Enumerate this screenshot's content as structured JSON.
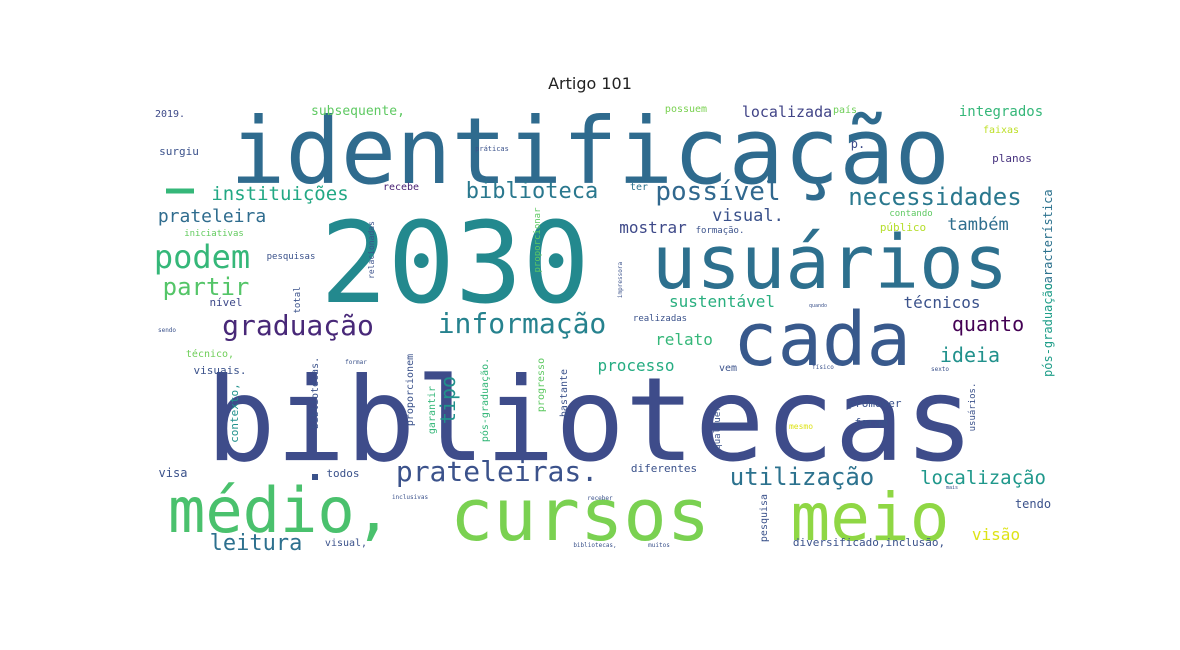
{
  "title": "Artigo 101",
  "words": [
    {
      "text": "bibliotecas",
      "color": "#3e4c8a"
    },
    {
      "text": "2030",
      "color": "#23898e"
    },
    {
      "text": "identificação",
      "color": "#2f6b8e"
    },
    {
      "text": "usuários",
      "color": "#2d708e"
    },
    {
      "text": "cada",
      "color": "#38598c"
    },
    {
      "text": "cursos",
      "color": "#7ad151"
    },
    {
      "text": "meio",
      "color": "#8fd744"
    },
    {
      "text": "médio,",
      "color": "#4ac16d"
    },
    {
      "text": "graduação",
      "color": "#482878"
    },
    {
      "text": "informação",
      "color": "#26828e"
    },
    {
      "text": "podem",
      "color": "#35b779"
    },
    {
      "text": "prateleiras.",
      "color": "#3b528b"
    },
    {
      "text": "utilização",
      "color": "#2c728e"
    },
    {
      "text": "possível",
      "color": "#31688e"
    },
    {
      "text": "necessidades",
      "color": "#2a788e"
    },
    {
      "text": "biblioteca",
      "color": "#2a788e"
    },
    {
      "text": "instituições",
      "color": "#22a884"
    },
    {
      "text": "partir",
      "color": "#54c568"
    },
    {
      "text": "prateleira",
      "color": "#2f6c8e"
    },
    {
      "text": "leitura",
      "color": "#2d708e"
    },
    {
      "text": "localização",
      "color": "#1f988b"
    },
    {
      "text": "quanto",
      "color": "#440154"
    },
    {
      "text": "ideia",
      "color": "#21918c"
    },
    {
      "text": "visual.",
      "color": "#3b528b"
    },
    {
      "text": "também",
      "color": "#2e6e8e"
    },
    {
      "text": "sustentável",
      "color": "#29af7f"
    },
    {
      "text": "mostrar",
      "color": "#3e4989"
    },
    {
      "text": "relato",
      "color": "#35b779"
    },
    {
      "text": "processo",
      "color": "#25ac82"
    },
    {
      "text": "técnicos",
      "color": "#3b528b"
    },
    {
      "text": "tipo",
      "color": "#21918c"
    },
    {
      "text": "visão",
      "color": "#dde318"
    },
    {
      "text": "localizada",
      "color": "#414487"
    },
    {
      "text": "integrados",
      "color": "#35b779"
    },
    {
      "text": "subsequente,",
      "color": "#5ec962"
    },
    {
      "text": "surgiu",
      "color": "#3b528b"
    },
    {
      "text": "2019.",
      "color": "#3e4a89"
    },
    {
      "text": "possuem",
      "color": "#7ad151"
    },
    {
      "text": "país",
      "color": "#6ece58"
    },
    {
      "text": "faixas",
      "color": "#bddf26"
    },
    {
      "text": "p.",
      "color": "#3e4c8a"
    },
    {
      "text": "planos",
      "color": "#46327e"
    },
    {
      "text": "característica",
      "color": "#2c728e"
    },
    {
      "text": "pós-graduação",
      "color": "#1f9e89"
    },
    {
      "text": "recebe",
      "color": "#482173"
    },
    {
      "text": "ter",
      "color": "#2c728e"
    },
    {
      "text": "contando",
      "color": "#5ec962"
    },
    {
      "text": "público",
      "color": "#b5de2b"
    },
    {
      "text": "formação.",
      "color": "#3b528b"
    },
    {
      "text": "iniciativas",
      "color": "#63cb5f"
    },
    {
      "text": "pesquisas",
      "color": "#3b528b"
    },
    {
      "text": "nível",
      "color": "#3e4989"
    },
    {
      "text": "total",
      "color": "#3b528b"
    },
    {
      "text": "realizadas",
      "color": "#3b528b"
    },
    {
      "text": "promover",
      "color": "#3b528b"
    },
    {
      "text": "foram",
      "color": "#3b528b"
    },
    {
      "text": "técnico,",
      "color": "#6ece58"
    },
    {
      "text": "visuais.",
      "color": "#3b528b"
    },
    {
      "text": "contexto,",
      "color": "#21918c"
    },
    {
      "text": "bibliotecas.",
      "color": "#3b528b"
    },
    {
      "text": "garantir",
      "color": "#35b779"
    },
    {
      "text": "proporcionem",
      "color": "#3b528b"
    },
    {
      "text": "pós-graduação.",
      "color": "#35b779"
    },
    {
      "text": "progresso",
      "color": "#5ec962"
    },
    {
      "text": "bastante",
      "color": "#3b528b"
    },
    {
      "text": "vem",
      "color": "#3b528b"
    },
    {
      "text": "qualquer",
      "color": "#3b528b"
    },
    {
      "text": "mesmo",
      "color": "#dde318"
    },
    {
      "text": "usuários.",
      "color": "#3b528b"
    },
    {
      "text": "visa",
      "color": "#3b528b"
    },
    {
      "text": "todos",
      "color": "#3b528b"
    },
    {
      "text": "diferentes",
      "color": "#3b528b"
    },
    {
      "text": "tendo",
      "color": "#3b528b"
    },
    {
      "text": "visual,",
      "color": "#3b528b"
    },
    {
      "text": "pesquisa",
      "color": "#3b528b"
    },
    {
      "text": "diversificado,inclusão,",
      "color": "#3b528b"
    },
    {
      "text": "relacionadas",
      "color": "#3b528b"
    },
    {
      "text": "proporcionar",
      "color": "#5ec962"
    },
    {
      "text": "práticas",
      "color": "#3b528b"
    },
    {
      "text": "impressora",
      "color": "#3b528b"
    },
    {
      "text": "físico",
      "color": "#3b528b"
    },
    {
      "text": "formar",
      "color": "#3b528b"
    },
    {
      "text": "inclusivas",
      "color": "#3b528b"
    },
    {
      "text": "receber",
      "color": "#3b528b"
    },
    {
      "text": "muitos",
      "color": "#3b528b"
    },
    {
      "text": "bibliotecas,",
      "color": "#3b528b"
    },
    {
      "text": "sendo",
      "color": "#3b528b"
    },
    {
      "text": "quando",
      "color": "#3b528b"
    },
    {
      "text": "mais",
      "color": "#3b528b"
    },
    {
      "text": "sexto",
      "color": "#3b528b"
    }
  ]
}
